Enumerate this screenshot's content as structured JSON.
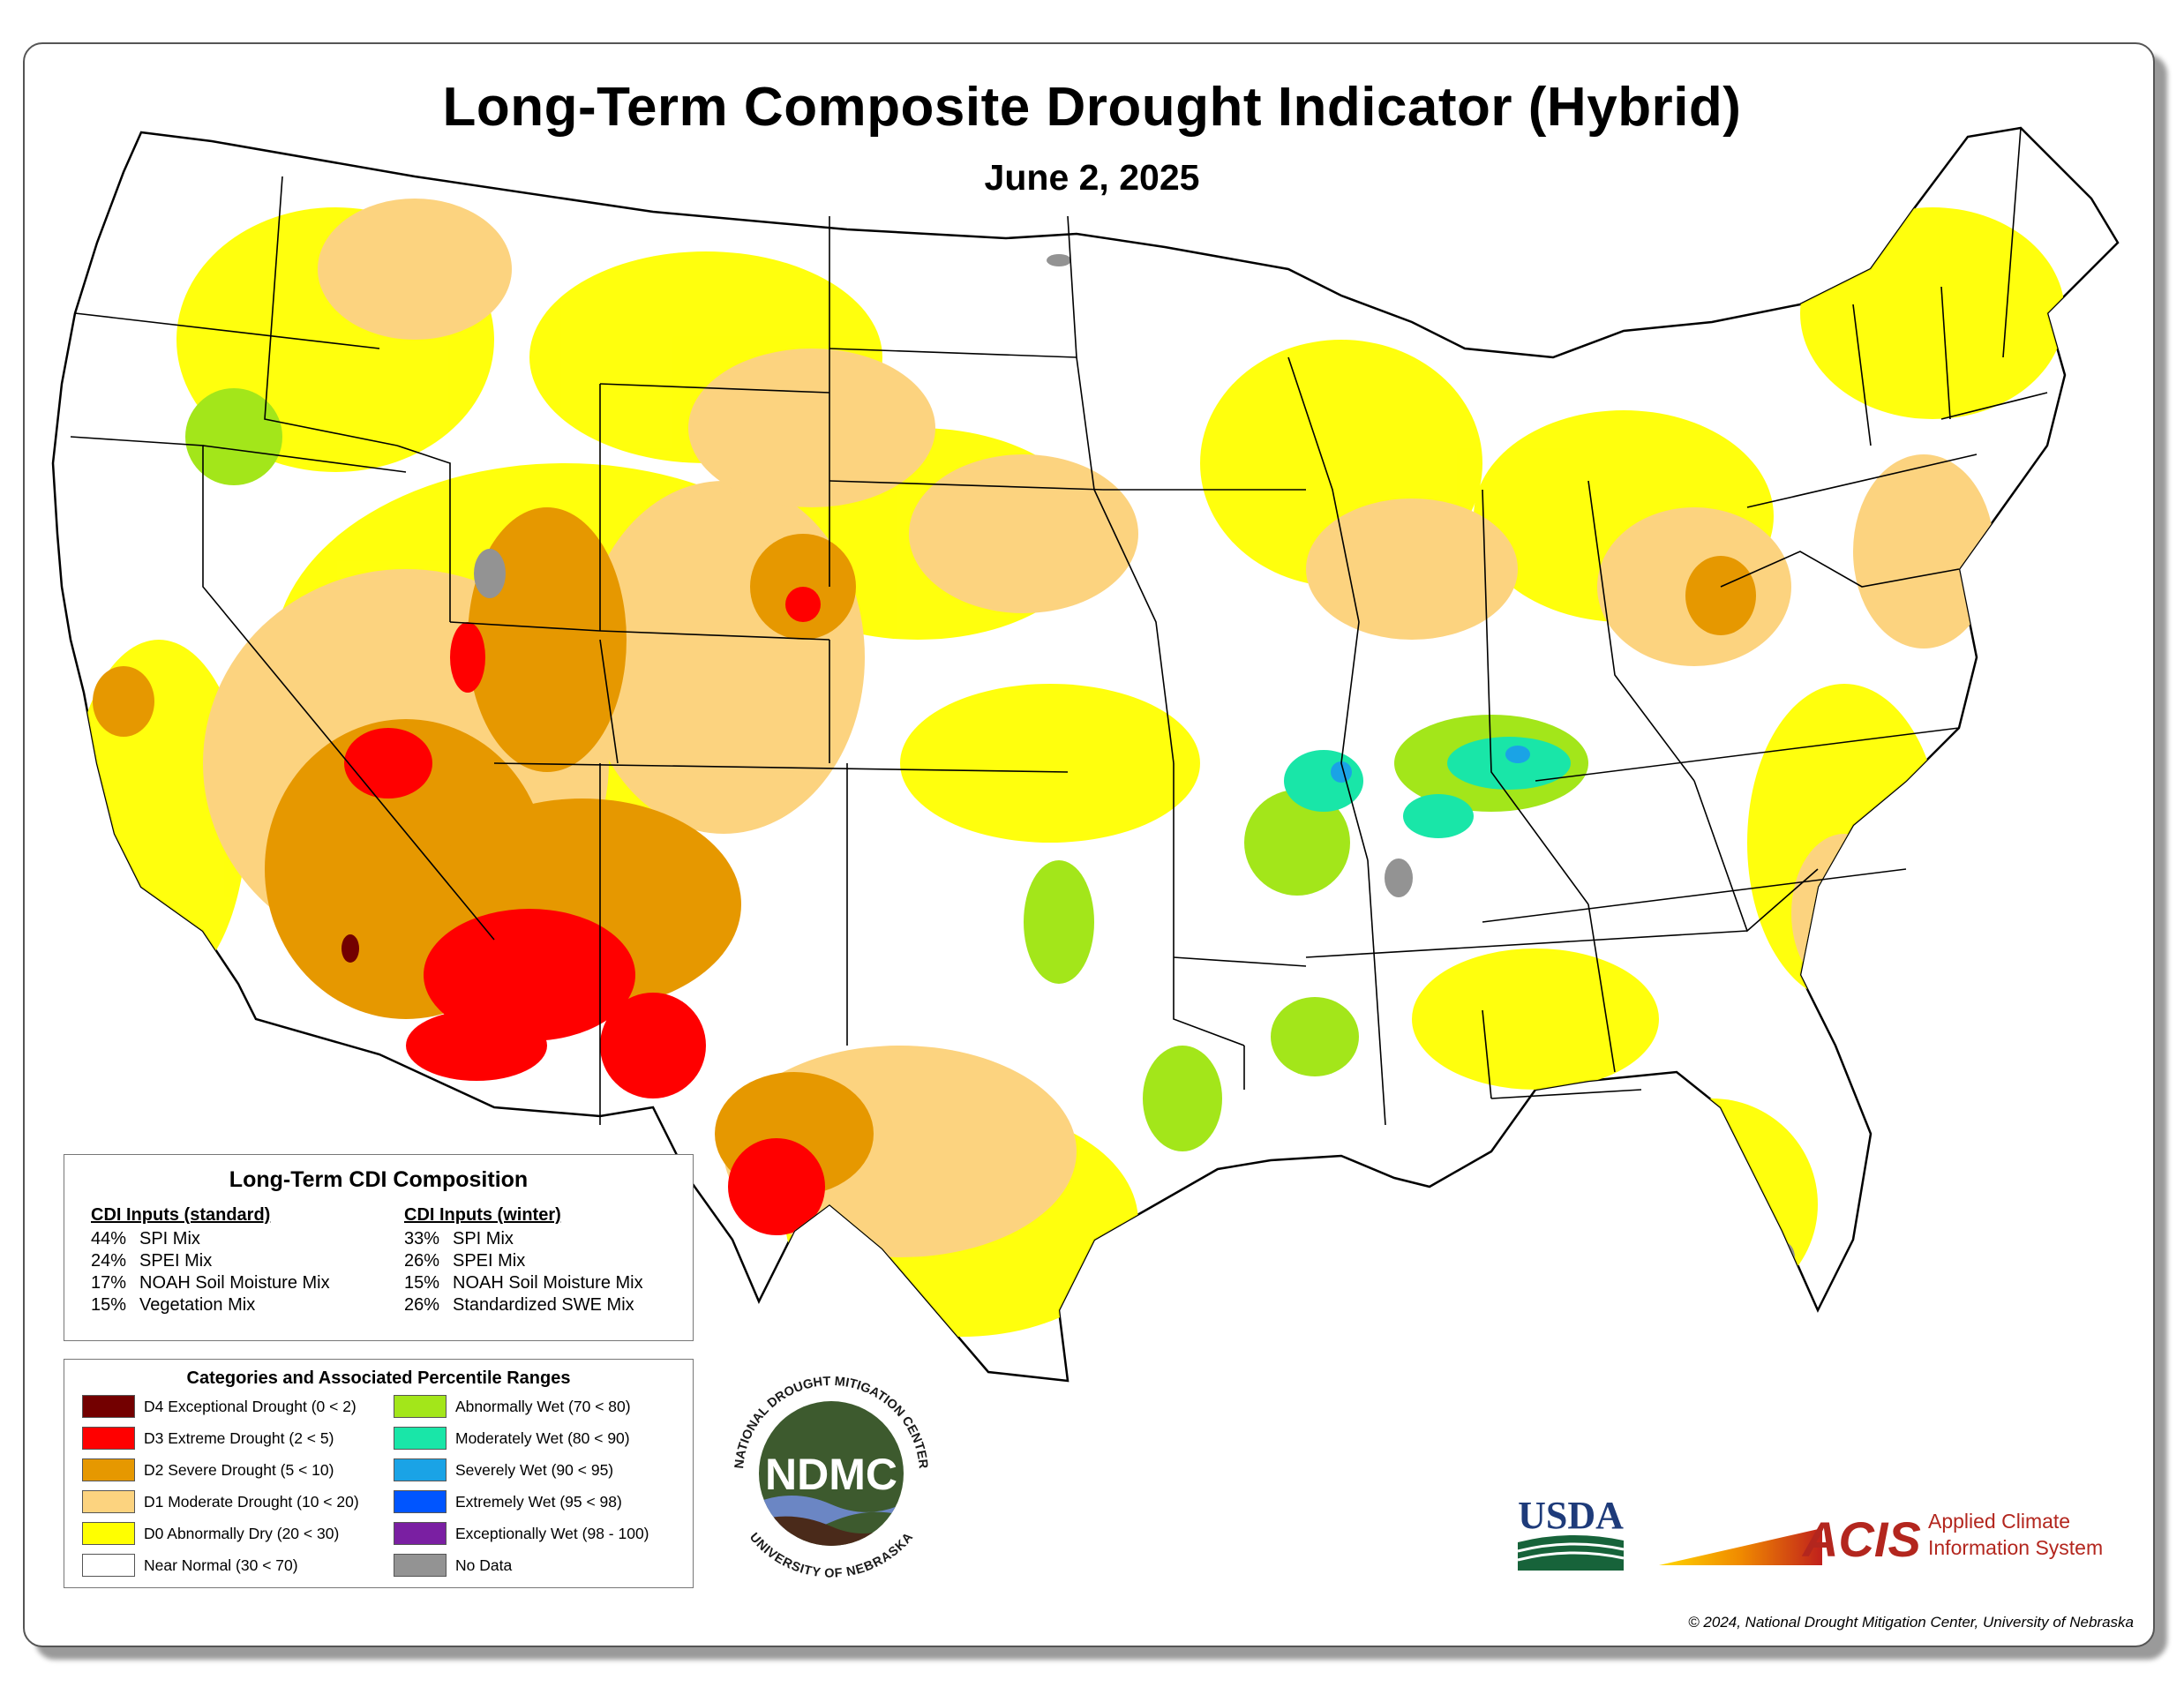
{
  "title": "Long-Term Composite Drought Indicator (Hybrid)",
  "date": "June 2, 2025",
  "composition": {
    "title": "Long-Term CDI Composition",
    "standard": {
      "heading": "CDI Inputs (standard)",
      "items": [
        {
          "pct": "44%",
          "name": "SPI Mix"
        },
        {
          "pct": "24%",
          "name": "SPEI Mix"
        },
        {
          "pct": "17%",
          "name": "NOAH Soil Moisture Mix"
        },
        {
          "pct": "15%",
          "name": "Vegetation Mix"
        }
      ]
    },
    "winter": {
      "heading": "CDI Inputs (winter)",
      "items": [
        {
          "pct": "33%",
          "name": "SPI Mix"
        },
        {
          "pct": "26%",
          "name": "SPEI Mix"
        },
        {
          "pct": "15%",
          "name": "NOAH Soil Moisture Mix"
        },
        {
          "pct": "26%",
          "name": "Standardized SWE Mix"
        }
      ]
    }
  },
  "categories": {
    "title": "Categories and Associated Percentile Ranges",
    "left": [
      {
        "label": "D4 Exceptional Drought (0 < 2)",
        "color": "#730000"
      },
      {
        "label": "D3 Extreme Drought (2 < 5)",
        "color": "#ff0000"
      },
      {
        "label": "D2 Severe Drought (5 < 10)",
        "color": "#e69800"
      },
      {
        "label": "D1 Moderate Drought (10 < 20)",
        "color": "#fcd37f"
      },
      {
        "label": "D0 Abnormally Dry (20 < 30)",
        "color": "#ffff00"
      },
      {
        "label": "Near Normal (30 < 70)",
        "color": "#ffffff"
      }
    ],
    "right": [
      {
        "label": "Abnormally Wet (70 < 80)",
        "color": "#a3e61a"
      },
      {
        "label": "Moderately Wet (80 < 90)",
        "color": "#19e6a8"
      },
      {
        "label": "Severely Wet (90 < 95)",
        "color": "#1aa3e6"
      },
      {
        "label": "Extremely Wet (95 < 98)",
        "color": "#0055ff"
      },
      {
        "label": "Exceptionally Wet (98 - 100)",
        "color": "#7a1fa2"
      },
      {
        "label": "No Data",
        "color": "#939393"
      }
    ]
  },
  "logos": {
    "ndmc": {
      "center": "NDMC",
      "ring_top": "NATIONAL DROUGHT MITIGATION CENTER",
      "ring_bottom": "UNIVERSITY OF NEBRASKA"
    },
    "usda": "USDA",
    "acis": {
      "abbr": "ACIS",
      "line1": "Applied Climate",
      "line2": "Information System"
    }
  },
  "copyright": "© 2024, National Drought Mitigation Center, University of Nebraska",
  "colors": {
    "d4": "#730000",
    "d3": "#ff0000",
    "d2": "#e69800",
    "d1": "#fcd37f",
    "d0": "#ffff00",
    "wet1": "#a3e61a",
    "wet2": "#19e6a8",
    "wet3": "#1aa3e6",
    "nodata": "#939393"
  }
}
